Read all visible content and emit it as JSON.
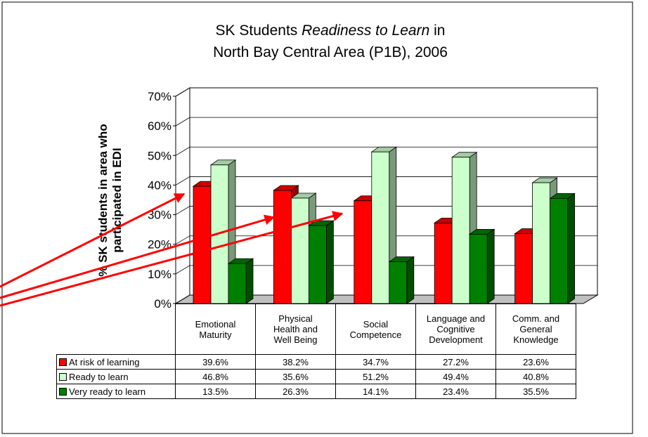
{
  "chart_data": {
    "type": "bar3d",
    "title": [
      "SK Students",
      "Readiness to Learn",
      "in",
      "North Bay Central Area (P1B), 2006"
    ],
    "y_label": [
      "% SK students in area who",
      "participated in EDI"
    ],
    "categories": [
      "Emotional\nMaturity",
      "Physical\nHealth and\nWell Being",
      "Social\nCompetence",
      "Language and\nCognitive\nDevelopment",
      "Comm. and\nGeneral\nKnowledge"
    ],
    "series": [
      {
        "name": "At risk of learning",
        "color": "#ff0000",
        "values": [
          39.6,
          38.2,
          34.7,
          27.2,
          23.6
        ],
        "value_labels": [
          "39.6%",
          "38.2%",
          "34.7%",
          "27.2%",
          "23.6%"
        ]
      },
      {
        "name": "Ready to learn",
        "color": "#ccffcc",
        "values": [
          46.8,
          35.6,
          51.2,
          49.4,
          40.8
        ],
        "value_labels": [
          "46.8%",
          "35.6%",
          "51.2%",
          "49.4%",
          "40.8%"
        ]
      },
      {
        "name": "Very ready to learn",
        "color": "#008000",
        "values": [
          13.5,
          26.3,
          14.1,
          23.4,
          35.5
        ],
        "value_labels": [
          "13.5%",
          "26.3%",
          "14.1%",
          "23.4%",
          "35.5%"
        ]
      }
    ],
    "ylim": [
      0,
      70
    ],
    "yticks": [
      {
        "value": 0,
        "label": "0%"
      },
      {
        "value": 10,
        "label": "10%"
      },
      {
        "value": 20,
        "label": "20%"
      },
      {
        "value": 30,
        "label": "30%"
      },
      {
        "value": 40,
        "label": "40%"
      },
      {
        "value": 50,
        "label": "50%"
      },
      {
        "value": 60,
        "label": "60%"
      },
      {
        "value": 70,
        "label": "70%"
      }
    ],
    "grid": true
  }
}
